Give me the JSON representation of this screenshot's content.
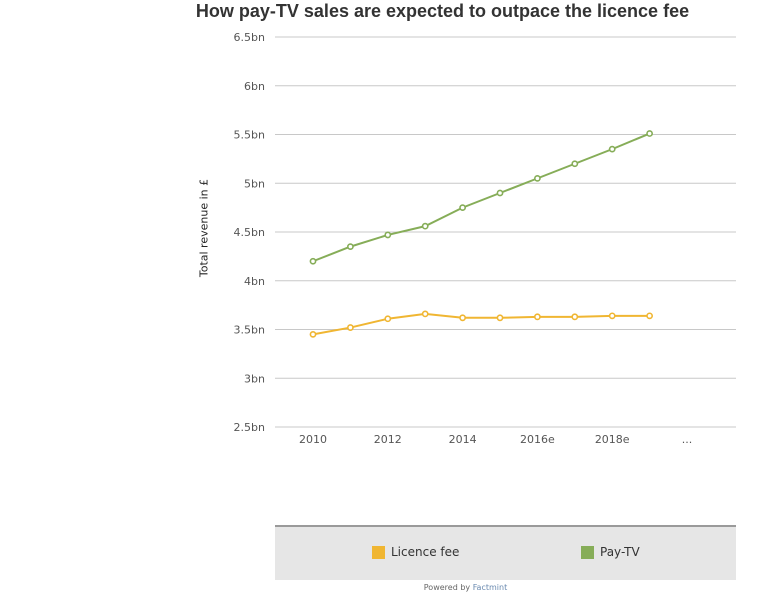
{
  "chart_data": {
    "type": "line",
    "title": "How pay-TV sales are expected to outpace the licence fee",
    "ylabel": "Total revenue in £",
    "xlabel": "",
    "ylim": [
      2.5,
      6.5
    ],
    "yticks": [
      "2.5bn",
      "3bn",
      "3.5bn",
      "4bn",
      "4.5bn",
      "5bn",
      "5.5bn",
      "6bn",
      "6.5bn"
    ],
    "ytick_values": [
      2.5,
      3,
      3.5,
      4,
      4.5,
      5,
      5.5,
      6,
      6.5
    ],
    "xticks": [
      "2010",
      "2012",
      "2014",
      "2016e",
      "2018e",
      "..."
    ],
    "x": [
      2010,
      2011,
      2012,
      2013,
      2014,
      2015,
      2016,
      2017,
      2018,
      2019
    ],
    "grid": true,
    "legend_position": "bottom",
    "series": [
      {
        "name": "Licence fee",
        "color": "#f0b632",
        "values": [
          3.45,
          3.52,
          3.61,
          3.66,
          3.62,
          3.62,
          3.63,
          3.63,
          3.64,
          3.64
        ]
      },
      {
        "name": "Pay-TV",
        "color": "#86ad58",
        "values": [
          4.2,
          4.35,
          4.47,
          4.56,
          4.75,
          4.9,
          5.05,
          5.2,
          5.35,
          5.51
        ]
      }
    ]
  },
  "footer": {
    "prefix": "Powered by",
    "brand": "Factmint"
  }
}
